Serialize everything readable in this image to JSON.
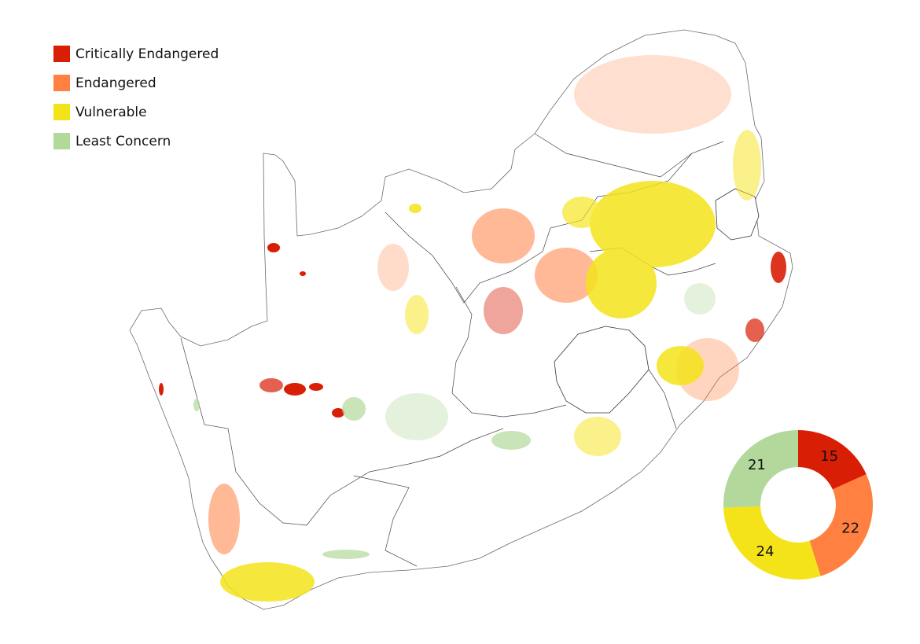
{
  "legend": {
    "items": [
      {
        "label": "Critically Endangered",
        "color": "#d81e05"
      },
      {
        "label": "Endangered",
        "color": "#ff8040"
      },
      {
        "label": "Vulnerable",
        "color": "#f5e31a"
      },
      {
        "label": "Least Concern",
        "color": "#b3d89c"
      }
    ]
  },
  "chart_data": {
    "type": "pie",
    "subtype": "donut",
    "categories": [
      "Critically Endangered",
      "Endangered",
      "Vulnerable",
      "Least Concern"
    ],
    "values": [
      15,
      22,
      24,
      21
    ],
    "colors": [
      "#d81e05",
      "#ff8040",
      "#f5e31a",
      "#b3d89c"
    ]
  }
}
